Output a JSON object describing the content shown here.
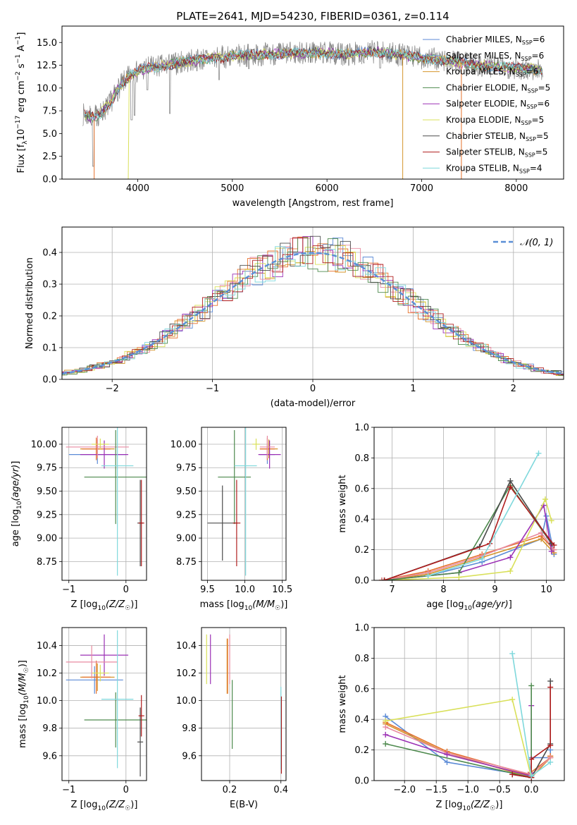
{
  "figure_title": "PLATE=2641, MJD=54230, FIBERID=0361, z=0.114",
  "colors": {
    "Chabrier MILES": "#5b8ad6",
    "Salpeter MILES": "#6aa9c7",
    "Kroupa MILES": "#d4952c",
    "Chabrier ELODIE": "#4e8a4e",
    "Salpeter ELODIE": "#9b30b5",
    "Kroupa ELODIE": "#d9e05a",
    "Chabrier STELIB": "#4b4b4b",
    "Salpeter STELIB": "#b01d1d",
    "Kroupa STELIB": "#7fd8dc",
    "data": "#808080",
    "orange": "#e6722b",
    "pink": "#e88aa0",
    "normal": "#5a8fd6"
  },
  "chart_data": [
    {
      "id": "spectrum",
      "type": "line",
      "title": "PLATE=2641, MJD=54230, FIBERID=0361, z=0.114",
      "xlabel": "wavelength [Angstrom, rest frame]",
      "ylabel": "Flux [f_λ 10^-17 erg cm^-2 s^-1 A^-1]",
      "xlim": [
        3200,
        8500
      ],
      "ylim": [
        0,
        16.8
      ],
      "xticks": [
        "4000",
        "5000",
        "6000",
        "7000",
        "8000"
      ],
      "yticks": [
        "0.0",
        "2.5",
        "5.0",
        "7.5",
        "10.0",
        "12.5",
        "15.0"
      ],
      "legend_position": "right",
      "legend": [
        {
          "name": "Chabrier MILES",
          "nssp": "6"
        },
        {
          "name": "Salpeter MILES",
          "nssp": "6"
        },
        {
          "name": "Kroupa MILES",
          "nssp": "6"
        },
        {
          "name": "Chabrier ELODIE",
          "nssp": "5"
        },
        {
          "name": "Salpeter ELODIE",
          "nssp": "6"
        },
        {
          "name": "Kroupa ELODIE",
          "nssp": "5"
        },
        {
          "name": "Chabrier STELIB",
          "nssp": "5"
        },
        {
          "name": "Salpeter STELIB",
          "nssp": "5"
        },
        {
          "name": "Kroupa STELIB",
          "nssp": "4"
        }
      ],
      "continuum": [
        [
          3420,
          7.1
        ],
        [
          3500,
          6.8
        ],
        [
          3600,
          7.1
        ],
        [
          3700,
          8.2
        ],
        [
          3800,
          10.0
        ],
        [
          3900,
          11.2
        ],
        [
          4000,
          11.8
        ],
        [
          4100,
          12.2
        ],
        [
          4300,
          12.5
        ],
        [
          4500,
          12.9
        ],
        [
          4700,
          13.2
        ],
        [
          5000,
          13.5
        ],
        [
          5300,
          13.7
        ],
        [
          5600,
          13.8
        ],
        [
          5900,
          13.9
        ],
        [
          6200,
          13.7
        ],
        [
          6500,
          14.0
        ],
        [
          6800,
          13.6
        ],
        [
          7100,
          13.2
        ],
        [
          7400,
          12.8
        ],
        [
          7700,
          12.4
        ],
        [
          8000,
          12.2
        ],
        [
          8280,
          12.0
        ]
      ],
      "grid": false
    },
    {
      "id": "residuals",
      "type": "line",
      "xlabel": "(data-model)/error",
      "ylabel": "Normed distribution",
      "xlim": [
        -2.5,
        2.5
      ],
      "ylim": [
        0,
        0.48
      ],
      "xticks": [
        "−2",
        "−1",
        "0",
        "1",
        "2"
      ],
      "yticks": [
        "0.0",
        "0.1",
        "0.2",
        "0.3",
        "0.4"
      ],
      "legend": [
        "𝒩(0, 1)"
      ],
      "legend_position": "top-right",
      "grid": true
    },
    {
      "id": "age_vs_Z",
      "type": "scatter",
      "xlabel": "Z [log10(Z/Z☉)]",
      "ylabel": "age  [log10(age/yr)]",
      "xlim": [
        -1.12,
        0.36
      ],
      "ylim": [
        8.55,
        10.18
      ],
      "xticks": [
        "−1",
        "0"
      ],
      "yticks": [
        "8.75",
        "9.00",
        "9.25",
        "9.50",
        "9.75",
        "10.00"
      ],
      "points": [
        {
          "series": "Chabrier MILES",
          "x": -0.5,
          "y": 9.89,
          "xerr": 0.5,
          "yerr": 0.1
        },
        {
          "series": "Kroupa MILES",
          "x": -0.5,
          "y": 9.95,
          "xerr": 0.3,
          "yerr": 0.1
        },
        {
          "series": "orange",
          "x": -0.52,
          "y": 9.95,
          "xerr": 0.25,
          "yerr": 0.12
        },
        {
          "series": "Salpeter ELODIE",
          "x": -0.38,
          "y": 9.89,
          "xerr": 0.42,
          "yerr": 0.15
        },
        {
          "series": "Kroupa ELODIE",
          "x": -0.45,
          "y": 10.0,
          "xerr": 0.15,
          "yerr": 0.06
        },
        {
          "series": "pink",
          "x": -0.5,
          "y": 9.97,
          "xerr": 0.55,
          "yerr": 0.12
        },
        {
          "series": "Chabrier ELODIE",
          "x": -0.18,
          "y": 9.65,
          "xerr": 0.55,
          "yerr": 0.5
        },
        {
          "series": "Kroupa STELIB",
          "x": -0.15,
          "y": 9.77,
          "xerr": 0.28,
          "yerr": 1.17
        },
        {
          "series": "Chabrier STELIB",
          "x": 0.25,
          "y": 9.16,
          "xerr": 0.05,
          "yerr": 0.46
        },
        {
          "series": "Salpeter STELIB",
          "x": 0.27,
          "y": 9.16,
          "xerr": 0.05,
          "yerr": 0.46
        }
      ],
      "grid": true
    },
    {
      "id": "age_vs_mass",
      "type": "scatter",
      "xlabel": "mass [log10(M/M☉)]",
      "ylabel": "",
      "xlim": [
        9.42,
        10.55
      ],
      "ylim": [
        8.55,
        10.18
      ],
      "xticks": [
        "9.5",
        "10.0",
        "10.5"
      ],
      "yticks": [
        "8.75",
        "9.00",
        "9.25",
        "9.50",
        "9.75",
        "10.00"
      ],
      "points": [
        {
          "series": "Chabrier MILES",
          "x": 10.3,
          "y": 9.89,
          "xerr": 0.1,
          "yerr": 0.1
        },
        {
          "series": "Kroupa MILES",
          "x": 10.32,
          "y": 9.95,
          "xerr": 0.12,
          "yerr": 0.1
        },
        {
          "series": "orange",
          "x": 10.3,
          "y": 9.95,
          "xerr": 0.1,
          "yerr": 0.12
        },
        {
          "series": "Salpeter ELODIE",
          "x": 10.33,
          "y": 9.89,
          "xerr": 0.15,
          "yerr": 0.15
        },
        {
          "series": "Kroupa ELODIE",
          "x": 10.15,
          "y": 10.0,
          "xerr": 0.05,
          "yerr": 0.06
        },
        {
          "series": "pink",
          "x": 10.3,
          "y": 9.97,
          "xerr": 0.1,
          "yerr": 0.12
        },
        {
          "series": "Chabrier ELODIE",
          "x": 9.86,
          "y": 9.65,
          "xerr": 0.22,
          "yerr": 0.5
        },
        {
          "series": "Kroupa STELIB",
          "x": 10.01,
          "y": 9.77,
          "xerr": 0.15,
          "yerr": 1.17
        },
        {
          "series": "Chabrier STELIB",
          "x": 9.7,
          "y": 9.16,
          "xerr": 0.2,
          "yerr": 0.4
        },
        {
          "series": "Salpeter STELIB",
          "x": 9.89,
          "y": 9.16,
          "xerr": 0.05,
          "yerr": 0.46
        }
      ],
      "grid": true
    },
    {
      "id": "weight_vs_age",
      "type": "line",
      "xlabel": "age  [log10(age/yr)]",
      "ylabel": "mass weight",
      "xlim": [
        6.65,
        10.35
      ],
      "ylim": [
        0,
        1.0
      ],
      "xticks": [
        "7",
        "8",
        "9",
        "10"
      ],
      "yticks": [
        "0.0",
        "0.2",
        "0.4",
        "0.6",
        "0.8",
        "1.0"
      ],
      "series": [
        {
          "name": "Chabrier MILES",
          "x": [
            6.8,
            7.7,
            8.75,
            9.9,
            10.0,
            10.15
          ],
          "y": [
            0.0,
            0.03,
            0.12,
            0.27,
            0.42,
            0.17
          ]
        },
        {
          "name": "Kroupa MILES",
          "x": [
            6.8,
            7.7,
            8.75,
            9.9,
            10.15
          ],
          "y": [
            0.0,
            0.04,
            0.15,
            0.27,
            0.18
          ]
        },
        {
          "name": "orange",
          "x": [
            6.8,
            7.7,
            8.75,
            9.9,
            10.15
          ],
          "y": [
            0.0,
            0.06,
            0.17,
            0.29,
            0.2
          ]
        },
        {
          "name": "pink",
          "x": [
            6.8,
            7.7,
            8.75,
            9.9,
            10.15
          ],
          "y": [
            0.0,
            0.05,
            0.16,
            0.31,
            0.2
          ]
        },
        {
          "name": "Salpeter ELODIE",
          "x": [
            6.85,
            8.3,
            9.3,
            9.95,
            10.1
          ],
          "y": [
            0.0,
            0.05,
            0.15,
            0.49,
            0.19
          ]
        },
        {
          "name": "Kroupa ELODIE",
          "x": [
            6.85,
            8.3,
            9.3,
            9.98,
            10.1
          ],
          "y": [
            0.0,
            0.02,
            0.06,
            0.53,
            0.39
          ]
        },
        {
          "name": "Chabrier ELODIE",
          "x": [
            6.85,
            8.3,
            9.3,
            10.1
          ],
          "y": [
            0.0,
            0.05,
            0.62,
            0.24
          ]
        },
        {
          "name": "Chabrier STELIB",
          "x": [
            6.85,
            8.7,
            9.3,
            10.1
          ],
          "y": [
            0.0,
            0.22,
            0.65,
            0.24
          ]
        },
        {
          "name": "Salpeter STELIB",
          "x": [
            6.85,
            8.9,
            9.3,
            10.15
          ],
          "y": [
            0.0,
            0.24,
            0.61,
            0.23
          ]
        },
        {
          "name": "Kroupa STELIB",
          "x": [
            7.7,
            8.75,
            9.85
          ],
          "y": [
            0.03,
            0.14,
            0.83
          ]
        }
      ],
      "grid": true
    },
    {
      "id": "mass_vs_Z",
      "type": "scatter",
      "xlabel": "Z [log10(Z/Z☉)]",
      "ylabel": "mass [log10(M/M☉)]",
      "xlim": [
        -1.12,
        0.36
      ],
      "ylim": [
        9.42,
        10.53
      ],
      "xticks": [
        "−1",
        "0"
      ],
      "yticks": [
        "9.6",
        "9.8",
        "10.0",
        "10.2",
        "10.4"
      ],
      "points": [
        {
          "series": "Chabrier MILES",
          "x": -0.55,
          "y": 10.15,
          "xerr": 0.5,
          "yerr": 0.1
        },
        {
          "series": "Kroupa MILES",
          "x": -0.5,
          "y": 10.17,
          "xerr": 0.3,
          "yerr": 0.1
        },
        {
          "series": "orange",
          "x": -0.52,
          "y": 10.17,
          "xerr": 0.25,
          "yerr": 0.12
        },
        {
          "series": "Salpeter ELODIE",
          "x": -0.38,
          "y": 10.33,
          "xerr": 0.42,
          "yerr": 0.15
        },
        {
          "series": "Kroupa ELODIE",
          "x": -0.45,
          "y": 10.2,
          "xerr": 0.15,
          "yerr": 0.06
        },
        {
          "series": "pink",
          "x": -0.6,
          "y": 10.28,
          "xerr": 0.45,
          "yerr": 0.12
        },
        {
          "series": "Chabrier ELODIE",
          "x": -0.18,
          "y": 9.86,
          "xerr": 0.55,
          "yerr": 0.2
        },
        {
          "series": "Kroupa STELIB",
          "x": -0.15,
          "y": 10.01,
          "xerr": 0.28,
          "yerr": 0.5
        },
        {
          "series": "Chabrier STELIB",
          "x": 0.25,
          "y": 9.7,
          "xerr": 0.05,
          "yerr": 0.25
        },
        {
          "series": "Salpeter STELIB",
          "x": 0.27,
          "y": 9.89,
          "xerr": 0.05,
          "yerr": 0.15
        }
      ],
      "grid": true
    },
    {
      "id": "mass_vs_ebv",
      "type": "scatter",
      "xlabel": "E(B-V)",
      "ylabel": "",
      "xlim": [
        0.09,
        0.42
      ],
      "ylim": [
        9.42,
        10.53
      ],
      "xticks": [
        "0.2",
        "0.4"
      ],
      "yticks": [
        "9.6",
        "9.8",
        "10.0",
        "10.2",
        "10.4"
      ],
      "points": [
        {
          "series": "Kroupa ELODIE",
          "x": 0.11,
          "y": 10.3,
          "yerr": 0.18
        },
        {
          "series": "Salpeter ELODIE",
          "x": 0.125,
          "y": 10.3,
          "yerr": 0.18
        },
        {
          "series": "Kroupa MILES",
          "x": 0.19,
          "y": 10.25,
          "yerr": 0.2
        },
        {
          "series": "orange",
          "x": 0.192,
          "y": 10.25,
          "yerr": 0.2
        },
        {
          "series": "pink",
          "x": 0.2,
          "y": 10.3,
          "yerr": 0.18
        },
        {
          "series": "Chabrier ELODIE",
          "x": 0.21,
          "y": 9.9,
          "yerr": 0.25
        },
        {
          "series": "Kroupa STELIB",
          "x": 0.4,
          "y": 9.8,
          "yerr": 0.3
        },
        {
          "series": "Salpeter STELIB",
          "x": 0.402,
          "y": 9.75,
          "yerr": 0.28
        }
      ],
      "grid": true
    },
    {
      "id": "weight_vs_Z",
      "type": "line",
      "xlabel": "Z [log10(Z/Z☉)]",
      "ylabel": "mass weight",
      "xlim": [
        -2.48,
        0.52
      ],
      "ylim": [
        0,
        1.0
      ],
      "xticks": [
        "−2.0",
        "−1.5",
        "−1.0",
        "−0.5",
        "0.0"
      ],
      "yticks": [
        "0.0",
        "0.2",
        "0.4",
        "0.6",
        "0.8",
        "1.0"
      ],
      "series": [
        {
          "name": "Chabrier MILES",
          "x": [
            -2.3,
            -1.33,
            0.0,
            0.0,
            0.3,
            0.3
          ],
          "y": [
            0.42,
            0.12,
            0.03,
            0.15,
            0.15,
            0.2
          ]
        },
        {
          "name": "Kroupa MILES",
          "x": [
            -2.3,
            -1.33,
            0.0,
            0.3,
            0.3
          ],
          "y": [
            0.37,
            0.18,
            0.02,
            0.15,
            0.16
          ]
        },
        {
          "name": "orange",
          "x": [
            -2.3,
            -1.33,
            -0.05,
            0.3,
            0.3
          ],
          "y": [
            0.38,
            0.19,
            0.04,
            0.15,
            0.16
          ]
        },
        {
          "name": "pink",
          "x": [
            -2.3,
            -1.33,
            0.0,
            0.3
          ],
          "y": [
            0.35,
            0.18,
            0.04,
            0.15
          ]
        },
        {
          "name": "Salpeter ELODIE",
          "x": [
            -2.3,
            -1.33,
            0.0,
            0.0,
            0.0
          ],
          "y": [
            0.3,
            0.17,
            0.03,
            0.05,
            0.49
          ]
        },
        {
          "name": "Kroupa ELODIE",
          "x": [
            -2.3,
            -0.3,
            0.0
          ],
          "y": [
            0.39,
            0.53,
            0.02
          ]
        },
        {
          "name": "Chabrier ELODIE",
          "x": [
            -2.3,
            0.0,
            0.0
          ],
          "y": [
            0.24,
            0.02,
            0.62
          ]
        },
        {
          "name": "Chabrier STELIB",
          "x": [
            -0.3,
            0.0,
            0.3,
            0.3
          ],
          "y": [
            0.04,
            0.02,
            0.24,
            0.65
          ]
        },
        {
          "name": "Salpeter STELIB",
          "x": [
            -0.3,
            0.0,
            0.0,
            0.3,
            0.3
          ],
          "y": [
            0.04,
            0.02,
            0.14,
            0.23,
            0.61
          ]
        },
        {
          "name": "Kroupa STELIB",
          "x": [
            -0.3,
            0.0,
            0.3
          ],
          "y": [
            0.83,
            0.03,
            0.12
          ]
        }
      ],
      "grid": true
    }
  ]
}
